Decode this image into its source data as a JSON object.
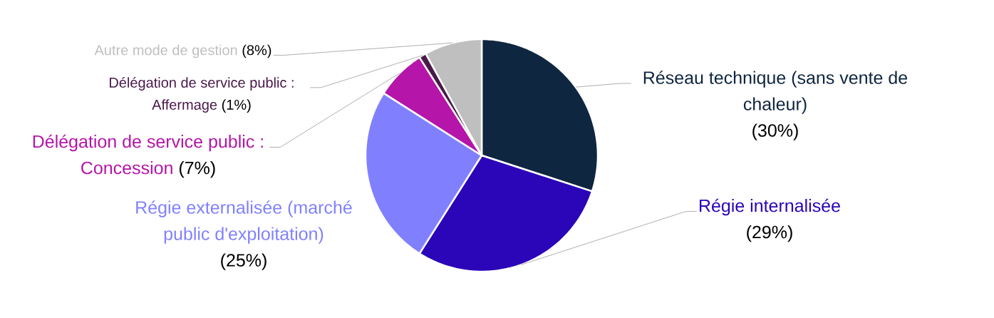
{
  "chart_data": {
    "type": "pie",
    "categories": [
      "Réseau technique (sans vente de chaleur)",
      "Régie internalisée",
      "Régie externalisée (marché public d'exploitation)",
      "Délégation de service public : Concession",
      "Délégation de service public : Affermage",
      "Autre mode de gestion"
    ],
    "values": [
      30,
      29,
      25,
      7,
      1,
      8
    ],
    "colors": [
      "#0f2640",
      "#2b05b8",
      "#8080ff",
      "#b515a8",
      "#4a1a4a",
      "#bfbfbf"
    ],
    "value_labels": [
      "(30%)",
      "(29%)",
      "(25%)",
      "(7%)",
      "(1%)",
      "(8%)"
    ]
  }
}
